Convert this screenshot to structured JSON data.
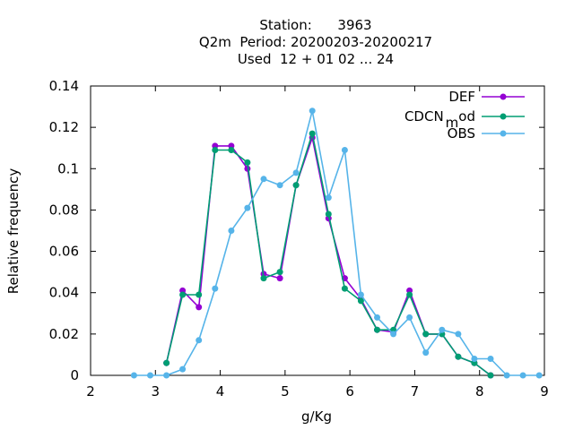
{
  "chart_data": {
    "type": "line",
    "title": [
      "Station:      3963",
      "Q2m  Period: 20200203-20200217",
      "Used  12 + 01 02 ... 24"
    ],
    "xlabel": "g/Kg",
    "ylabel": "Relative frequency",
    "xlim": [
      2,
      9
    ],
    "ylim": [
      0,
      0.14
    ],
    "xticks": [
      2,
      3,
      4,
      5,
      6,
      7,
      8,
      9
    ],
    "yticks": [
      0,
      0.02,
      0.04,
      0.06,
      0.08,
      0.1,
      0.12,
      0.14
    ],
    "grid": false,
    "legend_position": "top-right",
    "legend_cdcn": {
      "main": "CDCN",
      "sub": "m",
      "rest": "od"
    },
    "series": [
      {
        "name": "DEF",
        "color": "#9400d3",
        "marker": "filled-circle",
        "x": [
          3.17,
          3.42,
          3.67,
          3.92,
          4.17,
          4.42,
          4.67,
          4.92,
          5.17,
          5.42,
          5.67,
          5.92,
          6.17,
          6.42,
          6.67,
          6.92,
          7.17,
          7.42,
          7.67,
          7.92,
          8.17
        ],
        "y": [
          0.006,
          0.041,
          0.033,
          0.111,
          0.111,
          0.1,
          0.049,
          0.047,
          0.092,
          0.115,
          0.076,
          0.047,
          0.037,
          0.022,
          0.021,
          0.041,
          0.02,
          0.02,
          0.009,
          0.006,
          0.0
        ]
      },
      {
        "name": "CDCN_mod",
        "color": "#009e73",
        "marker": "filled-circle",
        "x": [
          3.17,
          3.42,
          3.67,
          3.92,
          4.17,
          4.42,
          4.67,
          4.92,
          5.17,
          5.42,
          5.67,
          5.92,
          6.17,
          6.42,
          6.67,
          6.92,
          7.17,
          7.42,
          7.67,
          7.92,
          8.17
        ],
        "y": [
          0.006,
          0.039,
          0.039,
          0.109,
          0.109,
          0.103,
          0.047,
          0.05,
          0.092,
          0.117,
          0.078,
          0.042,
          0.036,
          0.022,
          0.022,
          0.039,
          0.02,
          0.02,
          0.009,
          0.006,
          0.0
        ]
      },
      {
        "name": "OBS",
        "color": "#56b4e9",
        "marker": "filled-circle",
        "x": [
          2.67,
          2.92,
          3.17,
          3.42,
          3.67,
          3.92,
          4.17,
          4.42,
          4.67,
          4.92,
          5.17,
          5.42,
          5.67,
          5.92,
          6.17,
          6.42,
          6.67,
          6.92,
          7.17,
          7.42,
          7.67,
          7.92,
          8.17,
          8.42,
          8.67,
          8.92
        ],
        "y": [
          0.0,
          0.0,
          0.0,
          0.003,
          0.017,
          0.042,
          0.07,
          0.081,
          0.095,
          0.092,
          0.098,
          0.128,
          0.086,
          0.109,
          0.039,
          0.028,
          0.02,
          0.028,
          0.011,
          0.022,
          0.02,
          0.008,
          0.008,
          0.0,
          0.0,
          0.0
        ]
      }
    ]
  }
}
